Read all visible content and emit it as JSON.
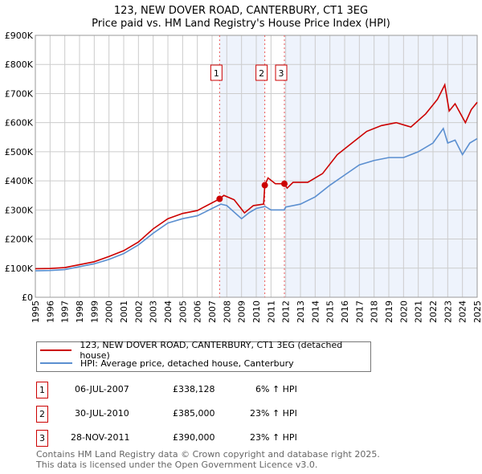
{
  "title_line1": "123, NEW DOVER ROAD, CANTERBURY, CT1 3EG",
  "title_line2": "Price paid vs. HM Land Registry's House Price Index (HPI)",
  "chart_data": {
    "type": "line",
    "xlim": [
      1995,
      2025
    ],
    "ylim": [
      0,
      900000
    ],
    "y_ticks": [
      0,
      100000,
      200000,
      300000,
      400000,
      500000,
      600000,
      700000,
      800000,
      900000
    ],
    "y_tick_labels": [
      "£0",
      "£100K",
      "£200K",
      "£300K",
      "£400K",
      "£500K",
      "£600K",
      "£700K",
      "£800K",
      "£900K"
    ],
    "x_ticks": [
      1995,
      1996,
      1997,
      1998,
      1999,
      2000,
      2001,
      2002,
      2003,
      2004,
      2005,
      2006,
      2007,
      2008,
      2009,
      2010,
      2011,
      2012,
      2013,
      2014,
      2015,
      2016,
      2017,
      2018,
      2019,
      2020,
      2021,
      2022,
      2023,
      2024,
      2025
    ],
    "grid": true,
    "colors": {
      "property": "#cc0000",
      "hpi": "#5b8fd0",
      "shade": "#eef3fc"
    },
    "series": [
      {
        "name": "123, NEW DOVER ROAD, CANTERBURY, CT1 3EG (detached house)",
        "x": [
          1995,
          1996,
          1997,
          1998,
          1999,
          2000,
          2001,
          2002,
          2003,
          2004,
          2005,
          2006,
          2007.51,
          2007.8,
          2008.5,
          2009.2,
          2009.8,
          2010.5,
          2010.58,
          2010.8,
          2011.3,
          2011.91,
          2012.1,
          2012.5,
          2013.5,
          2014.5,
          2015.5,
          2016.5,
          2017.5,
          2018.5,
          2019.5,
          2020.5,
          2021.5,
          2022.3,
          2022.8,
          2023.1,
          2023.5,
          2024.2,
          2024.6,
          2025
        ],
        "y": [
          98000,
          99000,
          102000,
          112000,
          122000,
          140000,
          160000,
          190000,
          235000,
          270000,
          288000,
          298000,
          338128,
          350000,
          335000,
          290000,
          315000,
          320000,
          385000,
          410000,
          390000,
          390000,
          375000,
          395000,
          395000,
          425000,
          490000,
          530000,
          570000,
          590000,
          600000,
          585000,
          630000,
          680000,
          730000,
          640000,
          665000,
          600000,
          645000,
          670000
        ]
      },
      {
        "name": "HPI: Average price, detached house, Canterbury",
        "x": [
          1995,
          1996,
          1997,
          1998,
          1999,
          2000,
          2001,
          2002,
          2003,
          2004,
          2005,
          2006,
          2007,
          2007.6,
          2008,
          2009,
          2009.5,
          2010,
          2010.6,
          2011,
          2011.9,
          2012,
          2013,
          2014,
          2015,
          2016,
          2017,
          2018,
          2019,
          2020,
          2021,
          2022,
          2022.7,
          2023,
          2023.5,
          2024,
          2024.5,
          2025
        ],
        "y": [
          91000,
          92000,
          95000,
          105000,
          115000,
          130000,
          150000,
          180000,
          220000,
          255000,
          270000,
          280000,
          305000,
          320000,
          315000,
          270000,
          290000,
          305000,
          312000,
          300000,
          300000,
          310000,
          320000,
          345000,
          385000,
          420000,
          455000,
          470000,
          480000,
          480000,
          500000,
          530000,
          580000,
          530000,
          540000,
          490000,
          530000,
          545000
        ]
      }
    ],
    "sales": [
      {
        "num": "1",
        "x": 2007.51,
        "price": 338128,
        "date": "06-JUL-2007",
        "price_label": "£338,128",
        "delta": "6% ↑ HPI"
      },
      {
        "num": "2",
        "x": 2010.58,
        "price": 385000,
        "date": "30-JUL-2010",
        "price_label": "£385,000",
        "delta": "23% ↑ HPI"
      },
      {
        "num": "3",
        "x": 2011.91,
        "price": 390000,
        "date": "28-NOV-2011",
        "price_label": "£390,000",
        "delta": "23% ↑ HPI"
      }
    ]
  },
  "footer_line1": "Contains HM Land Registry data © Crown copyright and database right 2025.",
  "footer_line2": "This data is licensed under the Open Government Licence v3.0."
}
